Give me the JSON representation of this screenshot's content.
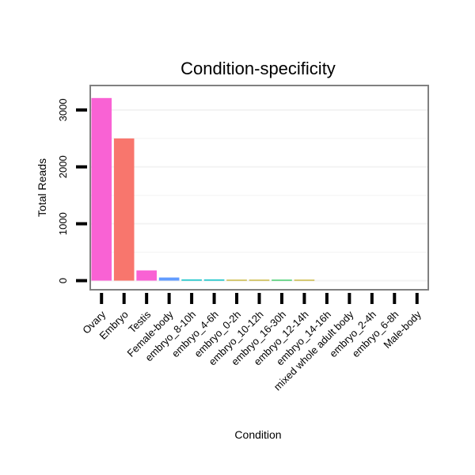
{
  "chart_data": {
    "type": "bar",
    "title": "Condition-specificity",
    "xlabel": "Condition",
    "ylabel": "Total Reads",
    "categories": [
      "Ovary",
      "Embryo",
      "Testis",
      "Female-body",
      "embryo_8-10h",
      "embryo_4-6h",
      "embryo_0-2h",
      "embryo_10-12h",
      "embryo_16-30h",
      "embryo_12-14h",
      "embryo_14-16h",
      "mixed whole adult body",
      "embryo_2-4h",
      "embryo_6-8h",
      "Male-body"
    ],
    "values": [
      3210,
      2500,
      180,
      55,
      20,
      20,
      15,
      15,
      15,
      15,
      0,
      0,
      0,
      0,
      0
    ],
    "bar_colors": [
      "#f962d4",
      "#f8766d",
      "#f962d4",
      "#619cff",
      "#00bfc4",
      "#00bfc4",
      "#b79f00",
      "#b79f00",
      "#00ba38",
      "#b79f00",
      "#b79f00",
      "#b79f00",
      "#b79f00",
      "#b79f00",
      "#b79f00"
    ],
    "yticks": [
      0,
      1000,
      2000,
      3000
    ],
    "ytick_labels": [
      "0",
      "1000",
      "2000",
      "3000"
    ],
    "ylim": [
      -160,
      3430
    ],
    "grid": true,
    "legend": "none"
  }
}
